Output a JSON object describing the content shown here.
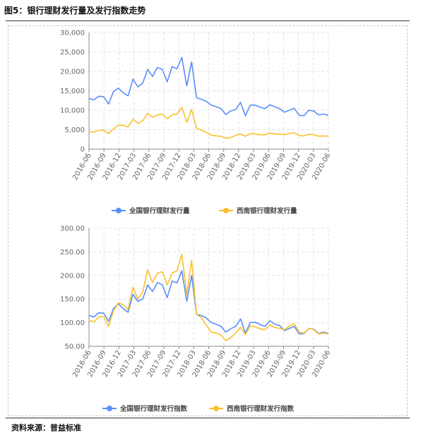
{
  "figure_title": "图5：银行理财发行量及发行指数走势",
  "source": "资料来源：普益标准",
  "colors": {
    "series_blue": "#5b8ff9",
    "series_yellow": "#fbc02d"
  },
  "chart_data": [
    {
      "type": "line",
      "title": "",
      "x_tick_labels": [
        "2016-06",
        "2016-09",
        "2016-12",
        "2017-03",
        "2017-06",
        "2017-09",
        "2017-12",
        "2018-03",
        "2018-06",
        "2018-09",
        "2018-12",
        "2019-03",
        "2019-06",
        "2019-09",
        "2019-12",
        "2020-03",
        "2020-06"
      ],
      "ylim": [
        0,
        30000
      ],
      "y_ticks": [
        "0",
        "5,000",
        "10,000",
        "15,000",
        "20,000",
        "25,000",
        "30,000"
      ],
      "grid": true,
      "legend_position": "bottom-center",
      "series": [
        {
          "name": "全国银行理财发行量",
          "values": [
            13000,
            12700,
            13600,
            13500,
            11600,
            14800,
            15700,
            14500,
            13700,
            18000,
            16000,
            17000,
            20500,
            18700,
            21000,
            20500,
            17300,
            21200,
            20700,
            23600,
            16300,
            22400,
            13200,
            12800,
            12300,
            11300,
            10900,
            10400,
            8900,
            9800,
            10200,
            12000,
            8600,
            11300,
            11300,
            10800,
            10400,
            11400,
            10900,
            10400,
            9500,
            10000,
            10500,
            8700,
            8600,
            10000,
            9800,
            8800,
            9000,
            8700
          ]
        },
        {
          "name": "西南银行理财发行量",
          "values": [
            4500,
            4400,
            4800,
            4900,
            4000,
            5200,
            6200,
            6100,
            5700,
            7700,
            6600,
            7300,
            9200,
            8200,
            8800,
            9000,
            7800,
            8800,
            9000,
            10800,
            6900,
            10200,
            5300,
            4900,
            4300,
            3600,
            3400,
            3300,
            2800,
            3000,
            3500,
            3900,
            3300,
            4000,
            3900,
            3700,
            3700,
            4100,
            3900,
            3800,
            3700,
            4000,
            4200,
            3500,
            3400,
            3800,
            3700,
            3300,
            3400,
            3300
          ]
        }
      ]
    },
    {
      "type": "line",
      "title": "",
      "x_tick_labels": [
        "2016-06",
        "2016-09",
        "2016-12",
        "2017-03",
        "2017-06",
        "2017-09",
        "2017-12",
        "2018-03",
        "2018-06",
        "2018-09",
        "2018-12",
        "2019-03",
        "2019-06",
        "2019-09",
        "2019-12",
        "2020-03",
        "2020-06"
      ],
      "ylim": [
        50,
        300
      ],
      "y_ticks": [
        "50.00",
        "100.00",
        "150.00",
        "200.00",
        "250.00",
        "300.00"
      ],
      "grid": true,
      "legend_position": "bottom-center",
      "series": [
        {
          "name": "全国银行理财发行指数",
          "values": [
            115,
            112,
            121,
            120,
            103,
            130,
            140,
            130,
            122,
            160,
            145,
            150,
            180,
            166,
            185,
            180,
            153,
            188,
            184,
            210,
            145,
            200,
            118,
            115,
            110,
            100,
            97,
            92,
            80,
            87,
            92,
            108,
            78,
            100,
            101,
            96,
            92,
            104,
            97,
            94,
            83,
            88,
            92,
            76,
            77,
            88,
            86,
            77,
            80,
            77
          ]
        },
        {
          "name": "西南银行理财发行指数",
          "values": [
            105,
            102,
            112,
            113,
            92,
            125,
            142,
            138,
            128,
            175,
            150,
            165,
            212,
            185,
            205,
            208,
            180,
            205,
            210,
            245,
            160,
            232,
            118,
            110,
            95,
            80,
            78,
            74,
            62,
            68,
            78,
            90,
            75,
            93,
            91,
            87,
            85,
            95,
            90,
            88,
            85,
            93,
            97,
            80,
            78,
            88,
            85,
            76,
            78,
            76
          ]
        }
      ]
    }
  ]
}
